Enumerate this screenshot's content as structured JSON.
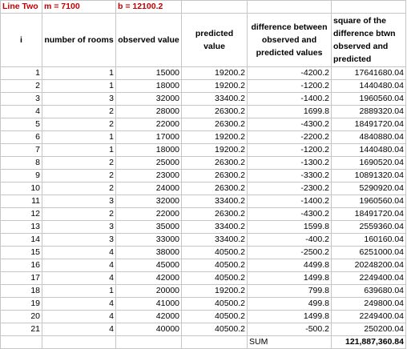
{
  "line_label": "Line Two",
  "m_label": "m = 7100",
  "b_label": "b = 12100.2",
  "headers": {
    "i": "i",
    "rooms": "number of rooms",
    "observed": "observed value",
    "predicted": "predicted value",
    "difference": "difference between observed and predicted values",
    "square": "square of the difference btwn observed and predicted"
  },
  "rows": [
    {
      "i": "1",
      "rooms": "1",
      "observed": "15000",
      "predicted": "19200.2",
      "difference": "-4200.2",
      "square": "17641680.04"
    },
    {
      "i": "2",
      "rooms": "1",
      "observed": "18000",
      "predicted": "19200.2",
      "difference": "-1200.2",
      "square": "1440480.04"
    },
    {
      "i": "3",
      "rooms": "3",
      "observed": "32000",
      "predicted": "33400.2",
      "difference": "-1400.2",
      "square": "1960560.04"
    },
    {
      "i": "4",
      "rooms": "2",
      "observed": "28000",
      "predicted": "26300.2",
      "difference": "1699.8",
      "square": "2889320.04"
    },
    {
      "i": "5",
      "rooms": "2",
      "observed": "22000",
      "predicted": "26300.2",
      "difference": "-4300.2",
      "square": "18491720.04"
    },
    {
      "i": "6",
      "rooms": "1",
      "observed": "17000",
      "predicted": "19200.2",
      "difference": "-2200.2",
      "square": "4840880.04"
    },
    {
      "i": "7",
      "rooms": "1",
      "observed": "18000",
      "predicted": "19200.2",
      "difference": "-1200.2",
      "square": "1440480.04"
    },
    {
      "i": "8",
      "rooms": "2",
      "observed": "25000",
      "predicted": "26300.2",
      "difference": "-1300.2",
      "square": "1690520.04"
    },
    {
      "i": "9",
      "rooms": "2",
      "observed": "23000",
      "predicted": "26300.2",
      "difference": "-3300.2",
      "square": "10891320.04"
    },
    {
      "i": "10",
      "rooms": "2",
      "observed": "24000",
      "predicted": "26300.2",
      "difference": "-2300.2",
      "square": "5290920.04"
    },
    {
      "i": "11",
      "rooms": "3",
      "observed": "32000",
      "predicted": "33400.2",
      "difference": "-1400.2",
      "square": "1960560.04"
    },
    {
      "i": "12",
      "rooms": "2",
      "observed": "22000",
      "predicted": "26300.2",
      "difference": "-4300.2",
      "square": "18491720.04"
    },
    {
      "i": "13",
      "rooms": "3",
      "observed": "35000",
      "predicted": "33400.2",
      "difference": "1599.8",
      "square": "2559360.04"
    },
    {
      "i": "14",
      "rooms": "3",
      "observed": "33000",
      "predicted": "33400.2",
      "difference": "-400.2",
      "square": "160160.04"
    },
    {
      "i": "15",
      "rooms": "4",
      "observed": "38000",
      "predicted": "40500.2",
      "difference": "-2500.2",
      "square": "6251000.04"
    },
    {
      "i": "16",
      "rooms": "4",
      "observed": "45000",
      "predicted": "40500.2",
      "difference": "4499.8",
      "square": "20248200.04"
    },
    {
      "i": "17",
      "rooms": "4",
      "observed": "42000",
      "predicted": "40500.2",
      "difference": "1499.8",
      "square": "2249400.04"
    },
    {
      "i": "18",
      "rooms": "1",
      "observed": "20000",
      "predicted": "19200.2",
      "difference": "799.8",
      "square": "639680.04"
    },
    {
      "i": "19",
      "rooms": "4",
      "observed": "41000",
      "predicted": "40500.2",
      "difference": "499.8",
      "square": "249800.04"
    },
    {
      "i": "20",
      "rooms": "4",
      "observed": "42000",
      "predicted": "40500.2",
      "difference": "1499.8",
      "square": "2249400.04"
    },
    {
      "i": "21",
      "rooms": "4",
      "observed": "40000",
      "predicted": "40500.2",
      "difference": "-500.2",
      "square": "250200.04"
    }
  ],
  "sum_label": "SUM",
  "sum_value": "121,887,360.84",
  "colors": {
    "label_red": "#c00000",
    "grid": "#c6c6c6"
  }
}
